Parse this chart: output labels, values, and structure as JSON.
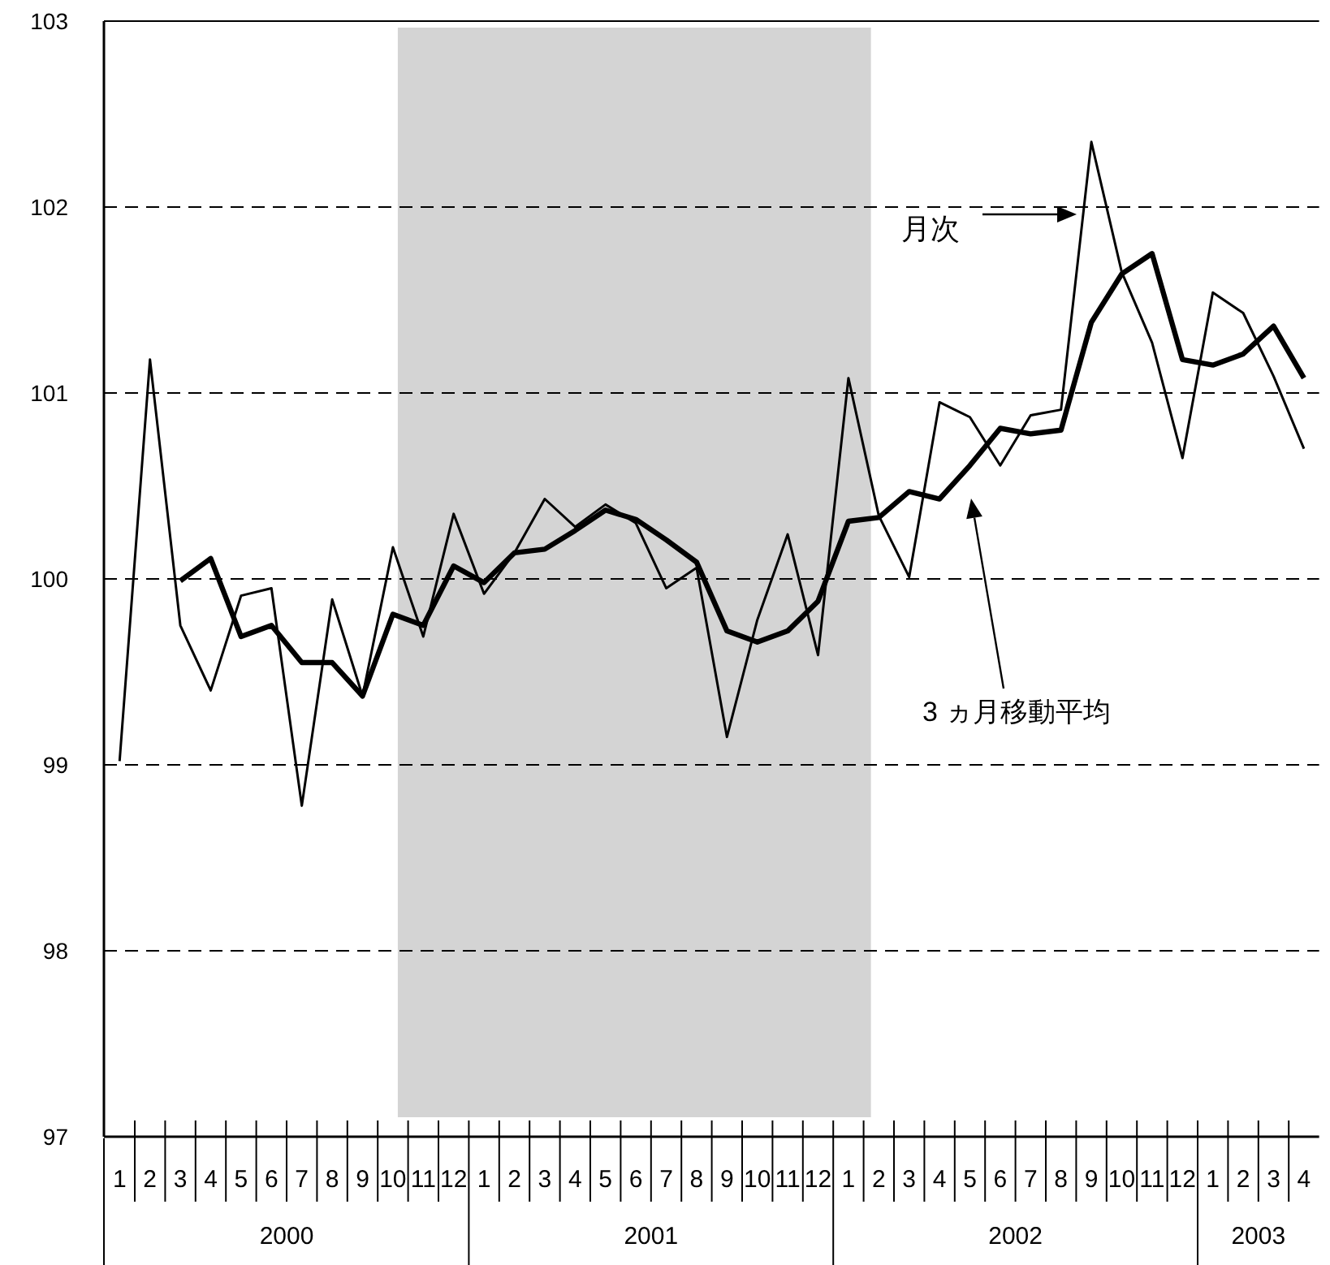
{
  "chart_data": {
    "type": "line",
    "x": [
      "2000-01",
      "2000-02",
      "2000-03",
      "2000-04",
      "2000-05",
      "2000-06",
      "2000-07",
      "2000-08",
      "2000-09",
      "2000-10",
      "2000-11",
      "2000-12",
      "2001-01",
      "2001-02",
      "2001-03",
      "2001-04",
      "2001-05",
      "2001-06",
      "2001-07",
      "2001-08",
      "2001-09",
      "2001-10",
      "2001-11",
      "2001-12",
      "2002-01",
      "2002-02",
      "2002-03",
      "2002-04",
      "2002-05",
      "2002-06",
      "2002-07",
      "2002-08",
      "2002-09",
      "2002-10",
      "2002-11",
      "2002-12",
      "2003-01",
      "2003-02",
      "2003-03",
      "2003-04"
    ],
    "series": [
      {
        "color": "#000000",
        "line_style": "solid",
        "values": [
          99.02,
          101.18,
          99.75,
          99.4,
          99.91,
          99.95,
          98.78,
          99.89,
          99.37,
          100.17,
          99.69,
          100.35,
          99.92,
          100.14,
          100.43,
          100.28,
          100.4,
          100.3,
          99.95,
          100.06,
          99.15,
          99.78,
          100.24,
          99.59,
          101.08,
          100.34,
          100.01,
          100.95,
          100.87,
          100.61,
          100.88,
          100.91,
          102.35,
          101.65,
          101.27,
          100.65,
          101.54,
          101.43,
          101.09,
          100.7
        ]
      },
      {
        "color": "#000000",
        "line_style": "solid",
        "values": [
          null,
          null,
          99.99,
          100.11,
          99.69,
          99.75,
          99.55,
          99.55,
          99.37,
          99.81,
          99.75,
          100.07,
          99.98,
          100.14,
          100.16,
          100.26,
          100.37,
          100.32,
          100.21,
          100.09,
          99.72,
          99.66,
          99.72,
          99.88,
          100.31,
          100.33,
          100.47,
          100.43,
          100.61,
          100.81,
          100.78,
          100.8,
          101.38,
          101.64,
          101.75,
          101.18,
          101.15,
          101.21,
          101.36,
          101.08
        ]
      }
    ],
    "ylim": [
      97,
      103
    ],
    "yticks": [
      97,
      98,
      99,
      100,
      101,
      102,
      103
    ],
    "xticks": [
      {
        "value": "2000-01",
        "label": "1"
      },
      {
        "value": "2000-02",
        "label": "2"
      },
      {
        "value": "2000-03",
        "label": "3"
      },
      {
        "value": "2000-04",
        "label": "4"
      },
      {
        "value": "2000-05",
        "label": "5"
      },
      {
        "value": "2000-06",
        "label": "6"
      },
      {
        "value": "2000-07",
        "label": "7"
      },
      {
        "value": "2000-08",
        "label": "8"
      },
      {
        "value": "2000-09",
        "label": "9"
      },
      {
        "value": "2000-10",
        "label": "10"
      },
      {
        "value": "2000-11",
        "label": "11"
      },
      {
        "value": "2000-12",
        "label": "12"
      },
      {
        "value": "2001-01",
        "label": "1"
      },
      {
        "value": "2001-02",
        "label": "2"
      },
      {
        "value": "2001-03",
        "label": "3"
      },
      {
        "value": "2001-04",
        "label": "4"
      },
      {
        "value": "2001-05",
        "label": "5"
      },
      {
        "value": "2001-06",
        "label": "6"
      },
      {
        "value": "2001-07",
        "label": "7"
      },
      {
        "value": "2001-08",
        "label": "8"
      },
      {
        "value": "2001-09",
        "label": "9"
      },
      {
        "value": "2001-10",
        "label": "10"
      },
      {
        "value": "2001-11",
        "label": "11"
      },
      {
        "value": "2001-12",
        "label": "12"
      },
      {
        "value": "2002-01",
        "label": "1"
      },
      {
        "value": "2002-02",
        "label": "2"
      },
      {
        "value": "2002-03",
        "label": "3"
      },
      {
        "value": "2002-04",
        "label": "4"
      },
      {
        "value": "2002-05",
        "label": "5"
      },
      {
        "value": "2002-06",
        "label": "6"
      },
      {
        "value": "2002-07",
        "label": "7"
      },
      {
        "value": "2002-08",
        "label": "8"
      },
      {
        "value": "2002-09",
        "label": "9"
      },
      {
        "value": "2002-10",
        "label": "10"
      },
      {
        "value": "2002-11",
        "label": "11"
      },
      {
        "value": "2002-12",
        "label": "12"
      },
      {
        "value": "2003-01",
        "label": "1"
      },
      {
        "value": "2003-02",
        "label": "2"
      },
      {
        "value": "2003-03",
        "label": "3"
      },
      {
        "value": "2003-04",
        "label": "4"
      }
    ],
    "x2ticks": [
      {
        "value": "2000-06-16",
        "label": "2000"
      },
      {
        "value": "2001-06-16",
        "label": "2001"
      },
      {
        "value": "2002-06-16",
        "label": "2002"
      },
      {
        "value": "2003-02-15",
        "label": "2003"
      }
    ],
    "xlim": [
      "1999-12-16",
      "2003-04-16"
    ],
    "x2lim": [
      "1999-12-16",
      "2003-04-16"
    ],
    "grid": "y",
    "marker": "none",
    "bands": [
      {
        "axis": "x",
        "from": "2000-10-06",
        "to": "2002-01-24",
        "color": "#d4d4d4"
      }
    ],
    "annotations": [
      "月次",
      "3 ヵ月移動平均"
    ]
  }
}
